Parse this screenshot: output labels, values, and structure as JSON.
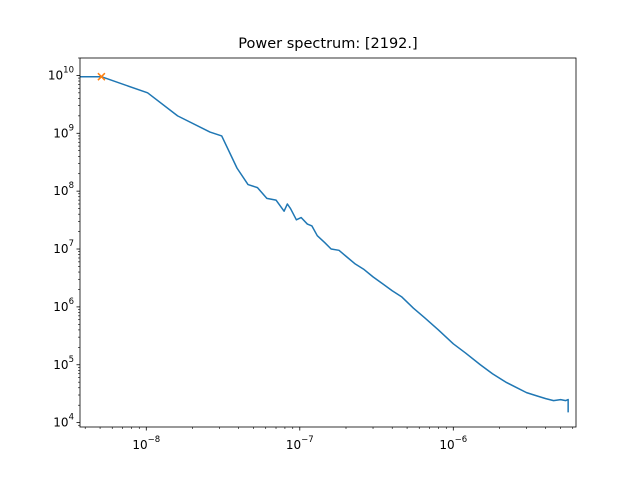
{
  "chart_data": {
    "type": "line",
    "title": "Power spectrum: [2192.]",
    "xlabel": "",
    "ylabel": "",
    "xscale": "log",
    "yscale": "log",
    "xlim": [
      3.7e-09,
      6.3e-06
    ],
    "ylim": [
      8400.0,
      20000000000.0
    ],
    "grid": false,
    "x_ticks": [
      {
        "base": "10",
        "exp": "−8",
        "value": 1e-08
      },
      {
        "base": "10",
        "exp": "−7",
        "value": 1e-07
      },
      {
        "base": "10",
        "exp": "−6",
        "value": 1e-06
      }
    ],
    "y_ticks": [
      {
        "base": "10",
        "exp": "4",
        "value": 10000.0
      },
      {
        "base": "10",
        "exp": "5",
        "value": 100000.0
      },
      {
        "base": "10",
        "exp": "6",
        "value": 1000000.0
      },
      {
        "base": "10",
        "exp": "7",
        "value": 10000000.0
      },
      {
        "base": "10",
        "exp": "8",
        "value": 100000000.0
      },
      {
        "base": "10",
        "exp": "9",
        "value": 1000000000.0
      },
      {
        "base": "10",
        "exp": "10",
        "value": 10000000000.0
      }
    ],
    "series": [
      {
        "kind": "line",
        "color": "#1f77b4",
        "x": [
          3.7e-09,
          5.1e-09,
          1.02e-08,
          1.6e-08,
          2.6e-08,
          3.1e-08,
          3.9e-08,
          4.6e-08,
          5.3e-08,
          6.1e-08,
          7e-08,
          7.9e-08,
          8.3e-08,
          8.7e-08,
          9.5e-08,
          1.02e-07,
          1.12e-07,
          1.2e-07,
          1.3e-07,
          1.45e-07,
          1.6e-07,
          1.8e-07,
          2e-07,
          2.3e-07,
          2.6e-07,
          3e-07,
          3.4e-07,
          4e-07,
          4.6e-07,
          5.5e-07,
          6.5e-07,
          8e-07,
          1e-06,
          1.2e-06,
          1.5e-06,
          1.8e-06,
          2.2e-06,
          2.6e-06,
          3e-06,
          3.5e-06,
          4e-06,
          4.5e-06,
          5e-06,
          5.4e-06,
          5.6e-06,
          5.6e-06
        ],
        "y": [
          9500000000.0,
          9500000000.0,
          5000000000.0,
          2000000000.0,
          1050000000.0,
          900000000.0,
          250000000.0,
          130000000.0,
          115000000.0,
          75000000.0,
          70000000.0,
          45000000.0,
          60000000.0,
          50000000.0,
          32000000.0,
          35000000.0,
          27000000.0,
          25000000.0,
          17000000.0,
          13000000.0,
          10000000.0,
          9500000.0,
          7500000.0,
          5500000.0,
          4500000.0,
          3300000.0,
          2600000.0,
          1900000.0,
          1500000.0,
          950000.0,
          650000.0,
          400000.0,
          230000.0,
          160000.0,
          100000.0,
          70000.0,
          50000.0,
          40000.0,
          33000.0,
          29000.0,
          26000.0,
          24000.0,
          25000.0,
          24000.0,
          25000.0,
          15000.0
        ]
      },
      {
        "kind": "marker",
        "marker": "x",
        "color": "#ff7f0e",
        "x": [
          5.1e-09
        ],
        "y": [
          9500000000.0
        ]
      }
    ]
  }
}
